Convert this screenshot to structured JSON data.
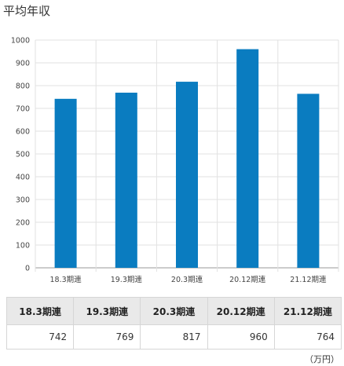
{
  "title": "平均年収",
  "unit": "（万円）",
  "chart_data": {
    "type": "bar",
    "categories": [
      "18.3期連",
      "19.3期連",
      "20.3期連",
      "20.12期連",
      "21.12期連"
    ],
    "values": [
      742,
      769,
      817,
      960,
      764
    ],
    "ylim": [
      0,
      1000
    ],
    "yticks": [
      0,
      100,
      200,
      300,
      400,
      500,
      600,
      700,
      800,
      900,
      1000
    ],
    "grid": true,
    "bar_color": "#0a7cc0"
  },
  "table": {
    "headers": [
      "18.3期連",
      "19.3期連",
      "20.3期連",
      "20.12期連",
      "21.12期連"
    ],
    "values": [
      "742",
      "769",
      "817",
      "960",
      "764"
    ]
  }
}
